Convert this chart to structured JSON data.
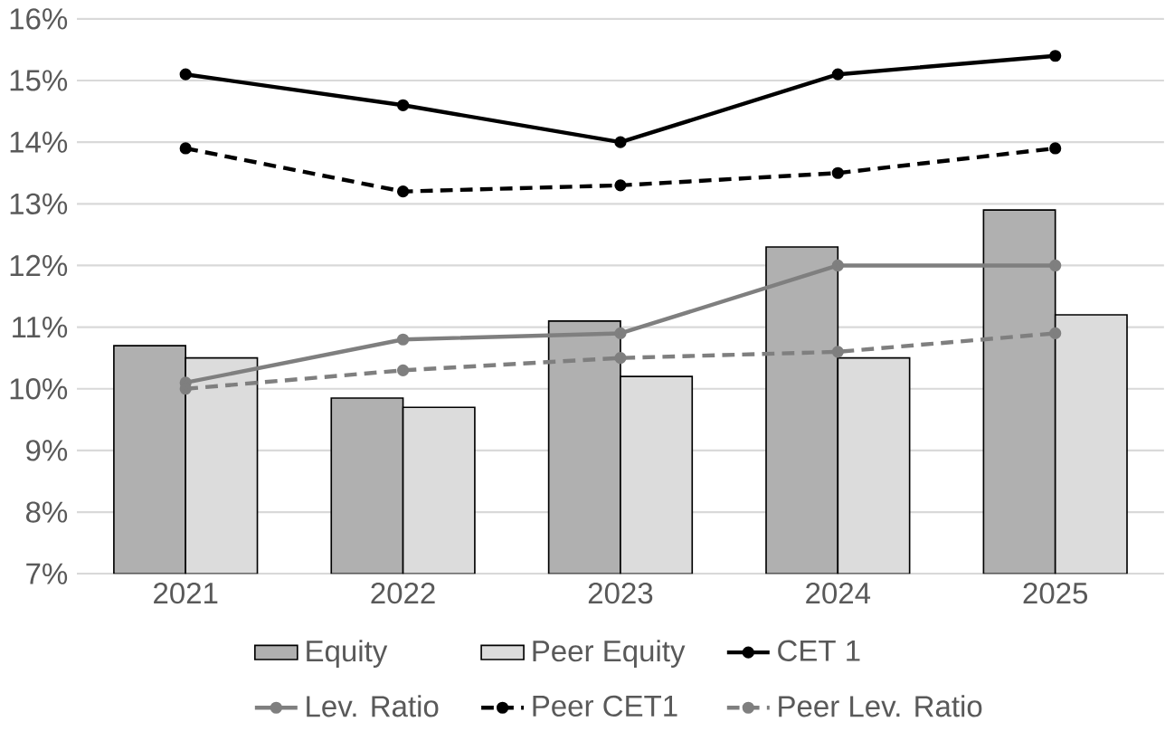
{
  "chart_data": {
    "type": "bar",
    "categories": [
      "2021",
      "2022",
      "2023",
      "2024",
      "2025"
    ],
    "series": [
      {
        "name": "Equity",
        "color": "#b0b0b0",
        "values": [
          10.7,
          9.85,
          11.1,
          12.3,
          12.9
        ]
      },
      {
        "name": "Peer Equity",
        "color": "#dcdcdc",
        "values": [
          10.5,
          9.7,
          10.2,
          10.5,
          11.2
        ]
      },
      {
        "name": "CET 1",
        "type": "line",
        "color": "#000000",
        "line_style": "solid",
        "values": [
          15.1,
          14.6,
          14.0,
          15.1,
          15.4
        ]
      },
      {
        "name": "Lev. Ratio",
        "type": "line",
        "color": "#7f7f7f",
        "line_style": "solid",
        "values": [
          10.1,
          10.8,
          10.9,
          12.0,
          12.0
        ]
      },
      {
        "name": "Peer CET1",
        "type": "line",
        "color": "#000000",
        "line_style": "dashed",
        "values": [
          13.9,
          13.2,
          13.3,
          13.5,
          13.9
        ]
      },
      {
        "name": "Peer Lev. Ratio",
        "type": "line",
        "color": "#7f7f7f",
        "line_style": "dashed",
        "values": [
          10.0,
          10.3,
          10.5,
          10.6,
          10.9
        ]
      }
    ],
    "ylim": [
      7,
      16
    ],
    "yticks": [
      {
        "value": 7,
        "label": "7%"
      },
      {
        "value": 8,
        "label": "8%"
      },
      {
        "value": 9,
        "label": "9%"
      },
      {
        "value": 10,
        "label": "10%"
      },
      {
        "value": 11,
        "label": "11%"
      },
      {
        "value": 12,
        "label": "12%"
      },
      {
        "value": 13,
        "label": "13%"
      },
      {
        "value": 14,
        "label": "14%"
      },
      {
        "value": 15,
        "label": "15%"
      },
      {
        "value": 16,
        "label": "16%"
      }
    ],
    "grid": "y",
    "legend": "bottom",
    "marker": "circle"
  }
}
